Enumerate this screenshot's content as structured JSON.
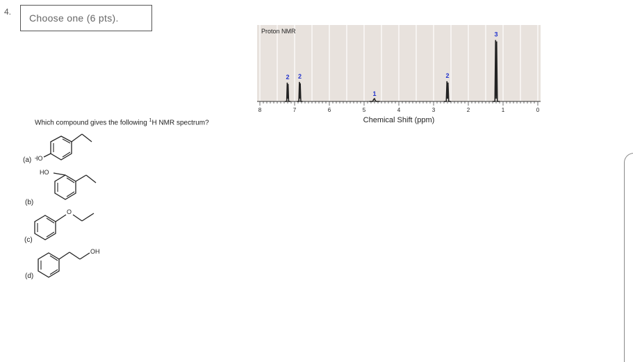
{
  "question": {
    "number": "4.",
    "choose_label": "Choose one (6 pts).",
    "prompt_before": "Which compound gives the following ",
    "prompt_sup": "1",
    "prompt_after": "H NMR spectrum?"
  },
  "chart_data": {
    "type": "line",
    "title": "Proton NMR",
    "xlabel": "Chemical Shift (ppm)",
    "xlim": [
      8,
      0
    ],
    "x_ticks": [
      "8",
      "7",
      "6",
      "5",
      "4",
      "3",
      "2",
      "1",
      "0"
    ],
    "grid": true,
    "peaks": [
      {
        "shift": 7.2,
        "height": 0.26,
        "integration": "2",
        "width": 0.08
      },
      {
        "shift": 6.85,
        "height": 0.27,
        "integration": "2",
        "width": 0.08
      },
      {
        "shift": 4.7,
        "height": 0.03,
        "integration": "1",
        "width": 0.15
      },
      {
        "shift": 2.6,
        "height": 0.28,
        "integration": "2",
        "width": 0.1
      },
      {
        "shift": 1.2,
        "height": 0.85,
        "integration": "3",
        "width": 0.1
      }
    ],
    "colors": {
      "background": "#e8e2dd",
      "grid": "#ffffff",
      "trace": "#222222",
      "integration": "#2233cc"
    }
  },
  "options": [
    {
      "label": "(a)",
      "substituent": "HO"
    },
    {
      "label": "(b)",
      "substituent": "HO"
    },
    {
      "label": "(c)",
      "substituent": "O"
    },
    {
      "label": "(d)",
      "substituent": "OH"
    }
  ]
}
